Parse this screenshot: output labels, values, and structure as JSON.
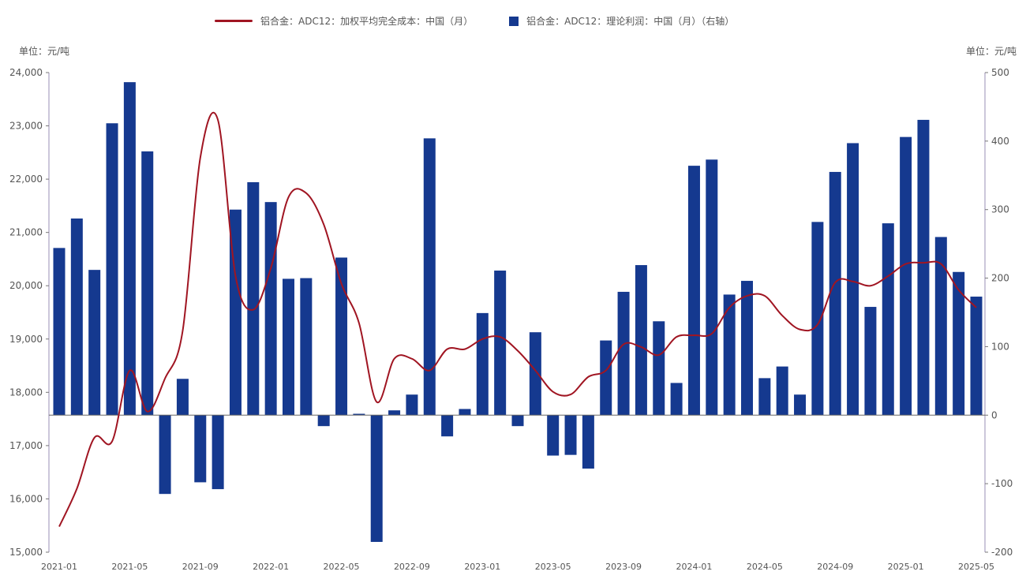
{
  "chart_data": {
    "type": "bar+line",
    "title": "",
    "left_unit": "单位：元/吨",
    "right_unit": "单位：元/吨",
    "x": [
      "2021-01",
      "2021-02",
      "2021-03",
      "2021-04",
      "2021-05",
      "2021-06",
      "2021-07",
      "2021-08",
      "2021-09",
      "2021-10",
      "2021-11",
      "2021-12",
      "2022-01",
      "2022-02",
      "2022-03",
      "2022-04",
      "2022-05",
      "2022-06",
      "2022-07",
      "2022-08",
      "2022-09",
      "2022-10",
      "2022-11",
      "2022-12",
      "2023-01",
      "2023-02",
      "2023-03",
      "2023-04",
      "2023-05",
      "2023-06",
      "2023-07",
      "2023-08",
      "2023-09",
      "2023-10",
      "2023-11",
      "2023-12",
      "2024-01",
      "2024-02",
      "2024-03",
      "2024-04",
      "2024-05",
      "2024-06",
      "2024-07",
      "2024-08",
      "2024-09",
      "2024-10",
      "2024-11",
      "2024-12",
      "2025-01",
      "2025-02",
      "2025-03",
      "2025-04",
      "2025-05"
    ],
    "x_tick_labels": [
      "2021-01",
      "2021-05",
      "2021-09",
      "2022-01",
      "2022-05",
      "2022-09",
      "2023-01",
      "2023-05",
      "2023-09",
      "2024-01",
      "2024-05",
      "2024-09",
      "2025-01",
      "2025-05"
    ],
    "series": [
      {
        "name": "铝合金：ADC12：加权平均完全成本：中国（月）",
        "type": "line",
        "axis": "left",
        "color": "#a01522",
        "values": [
          15480,
          16190,
          17150,
          17080,
          18410,
          17640,
          18260,
          19150,
          22400,
          23110,
          20180,
          19550,
          20330,
          21660,
          21740,
          21150,
          20040,
          19300,
          17820,
          18630,
          18630,
          18410,
          18810,
          18810,
          19000,
          19040,
          18780,
          18410,
          18010,
          17960,
          18290,
          18410,
          18900,
          18850,
          18700,
          19040,
          19070,
          19100,
          19590,
          19810,
          19810,
          19440,
          19180,
          19270,
          20060,
          20080,
          20000,
          20180,
          20410,
          20430,
          20410,
          19920,
          19590
        ]
      },
      {
        "name": "铝合金：ADC12：理论利润：中国（月）（右轴）",
        "type": "bar",
        "axis": "right",
        "color": "#15398f",
        "values": [
          244,
          287,
          212,
          426,
          486,
          385,
          -115,
          53,
          -98,
          -108,
          300,
          340,
          311,
          199,
          200,
          -16,
          230,
          2,
          -185,
          7,
          30,
          404,
          -31,
          9,
          149,
          211,
          -16,
          121,
          -59,
          -58,
          -78,
          109,
          180,
          219,
          137,
          47,
          364,
          373,
          176,
          196,
          54,
          71,
          30,
          282,
          355,
          397,
          158,
          280,
          406,
          431,
          260,
          209,
          173
        ]
      }
    ],
    "left_axis": {
      "ylim": [
        15000,
        24000
      ],
      "ticks": [
        "15,000",
        "16,000",
        "17,000",
        "18,000",
        "19,000",
        "20,000",
        "21,000",
        "22,000",
        "23,000",
        "24,000"
      ]
    },
    "right_axis": {
      "ylim": [
        -200,
        500
      ],
      "ticks": [
        "-200",
        "-100",
        "0",
        "100",
        "200",
        "300",
        "400",
        "500"
      ]
    },
    "legend_position": "top",
    "grid": false
  }
}
